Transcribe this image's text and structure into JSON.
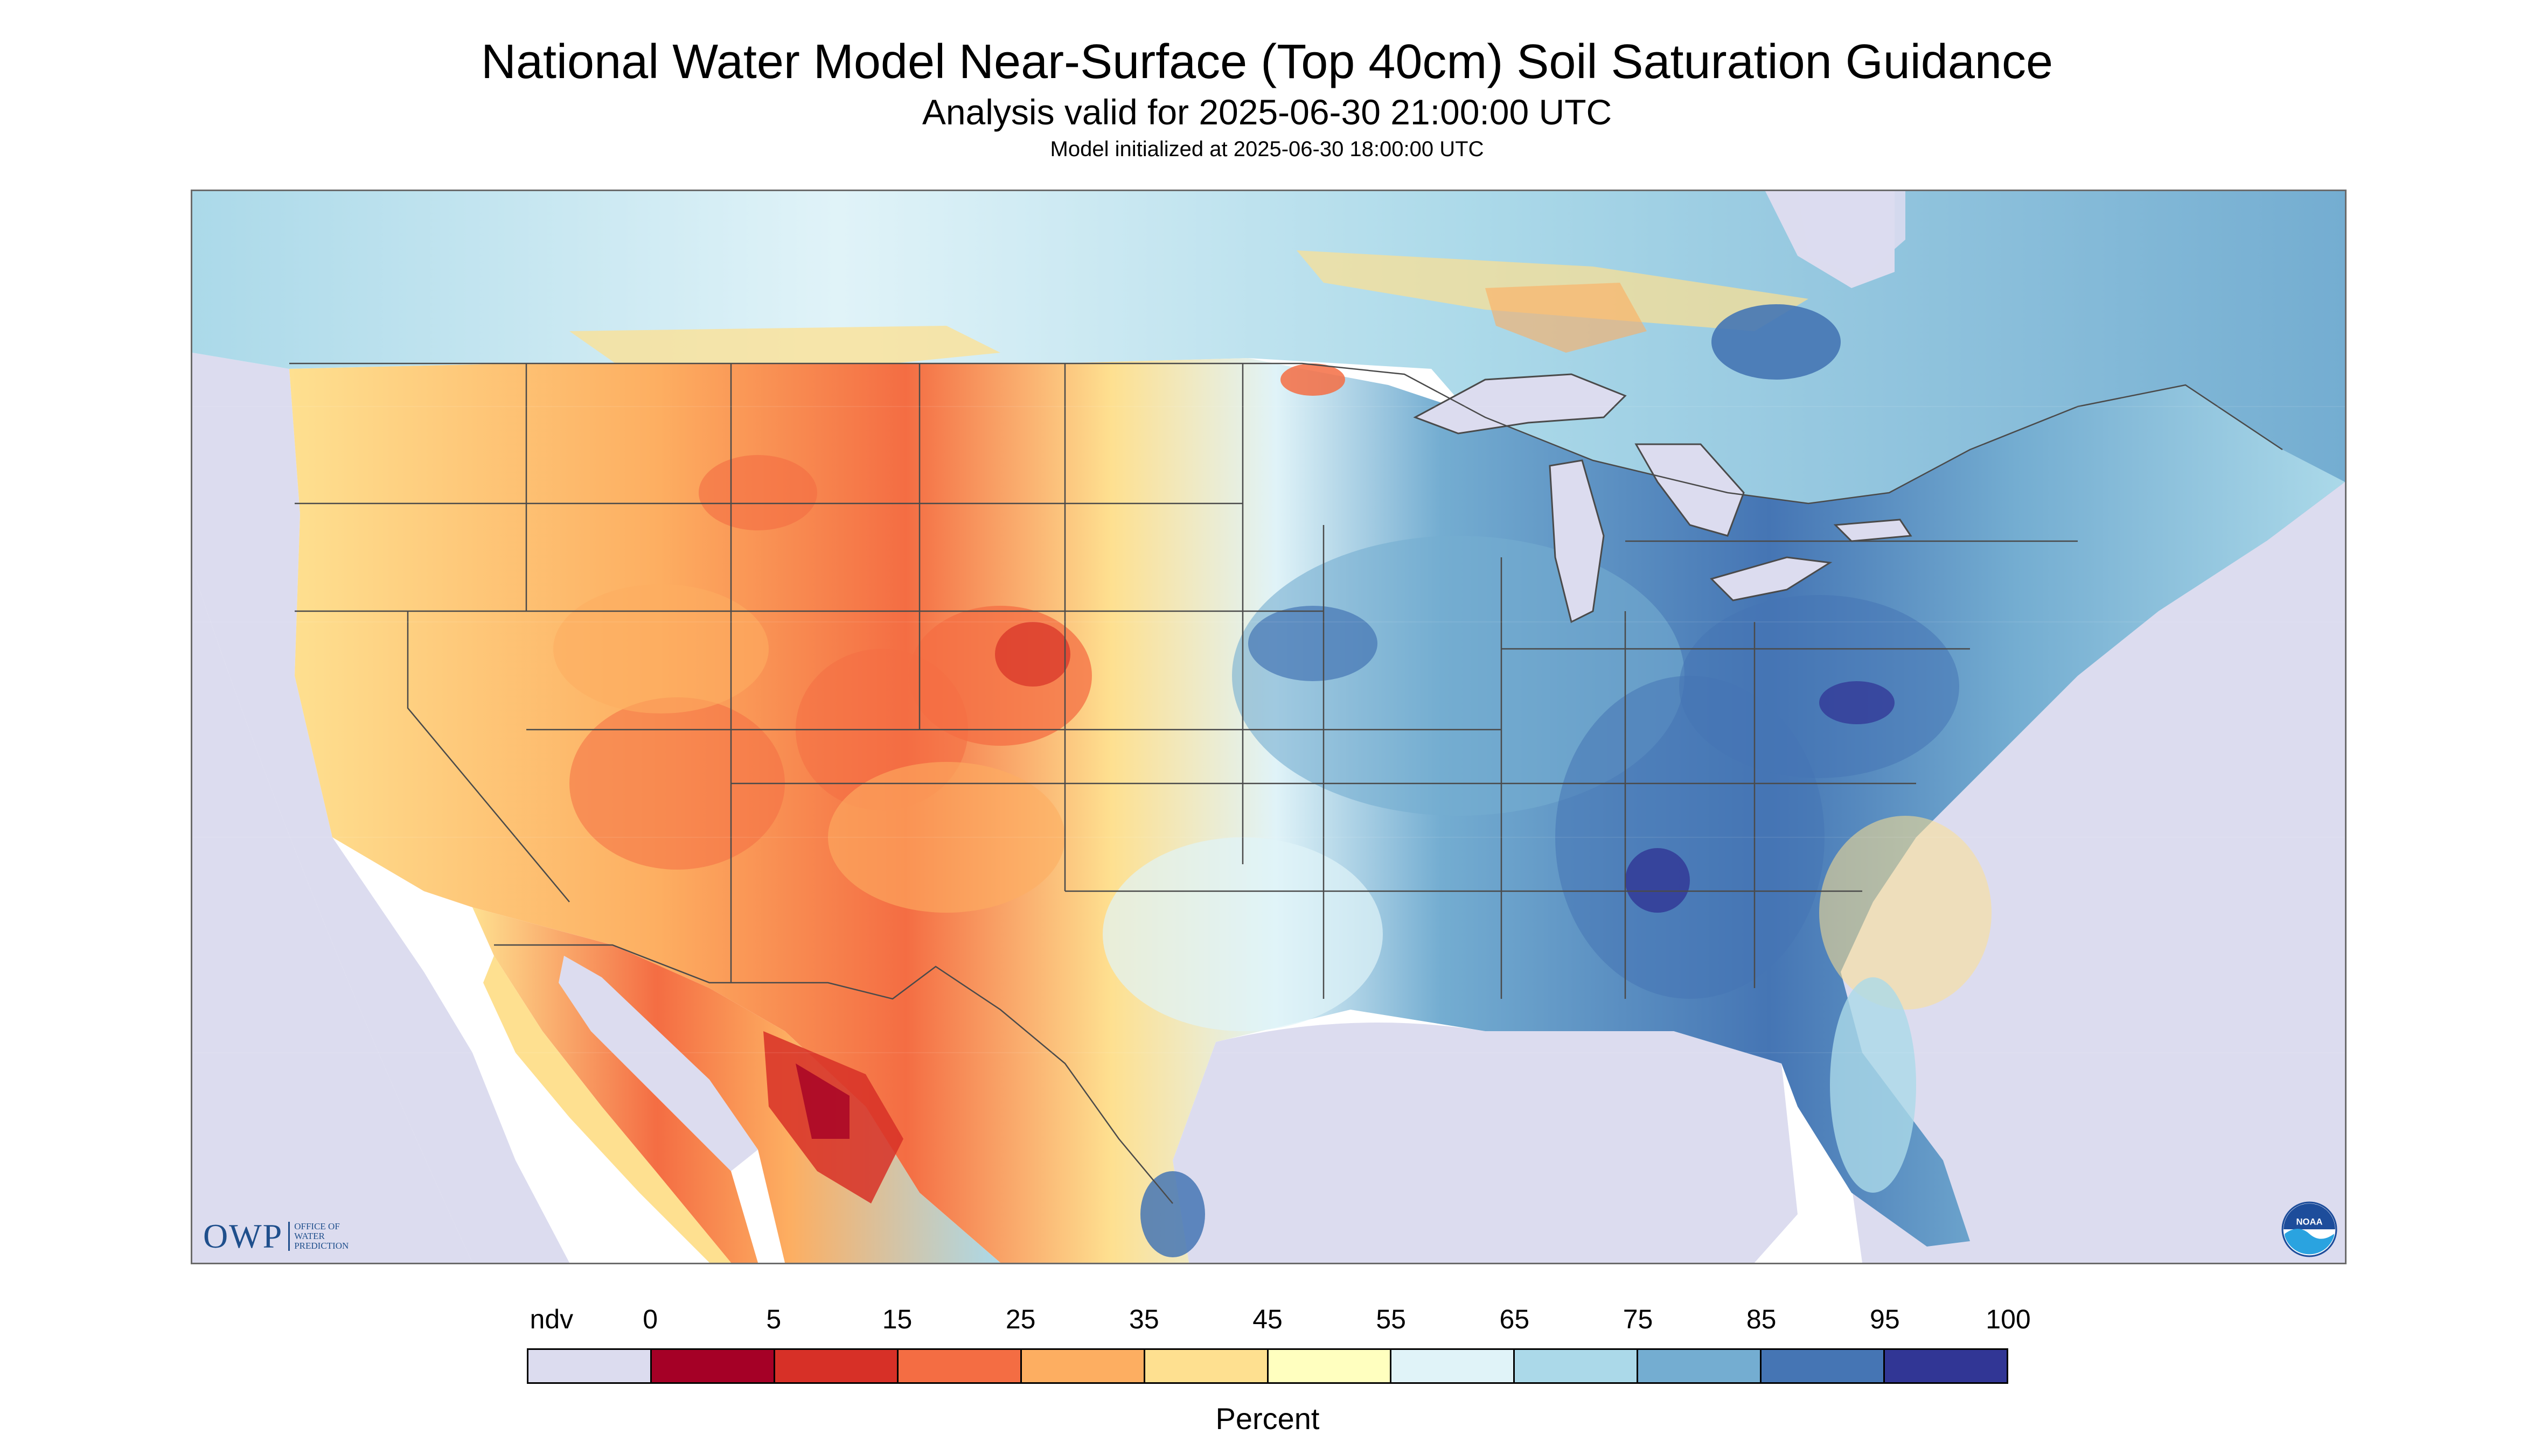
{
  "title": "National Water Model Near-Surface (Top 40cm) Soil Saturation Guidance",
  "subtitle": "Analysis valid for 2025-06-30 21:00:00 UTC",
  "init_line": "Model initialized at 2025-06-30 18:00:00 UTC",
  "map": {
    "region": "CONUS",
    "colors": {
      "no_data": "#dcdcef",
      "water": "#dcdcef",
      "borders": "#4a4a4a"
    }
  },
  "logos": {
    "owp": {
      "abbrev": "OWP",
      "name": "OFFICE OF\nWATER\nPREDICTION"
    },
    "noaa": {
      "text": "NOAA"
    }
  },
  "legend": {
    "units": "Percent",
    "labels": [
      "ndv",
      "0",
      "5",
      "15",
      "25",
      "35",
      "45",
      "55",
      "65",
      "75",
      "85",
      "95",
      "100"
    ],
    "bins": [
      {
        "range": "ndv",
        "color": "#dcdcef"
      },
      {
        "range": "0-5",
        "color": "#a50026"
      },
      {
        "range": "5-15",
        "color": "#d73027"
      },
      {
        "range": "15-25",
        "color": "#f46d43"
      },
      {
        "range": "25-35",
        "color": "#fdae61"
      },
      {
        "range": "35-45",
        "color": "#fee090"
      },
      {
        "range": "45-55",
        "color": "#ffffbf"
      },
      {
        "range": "55-65",
        "color": "#e0f3f8"
      },
      {
        "range": "65-75",
        "color": "#abd9e9"
      },
      {
        "range": "75-85",
        "color": "#74add1"
      },
      {
        "range": "85-95",
        "color": "#4575b4"
      },
      {
        "range": "95-100",
        "color": "#313695"
      }
    ]
  }
}
